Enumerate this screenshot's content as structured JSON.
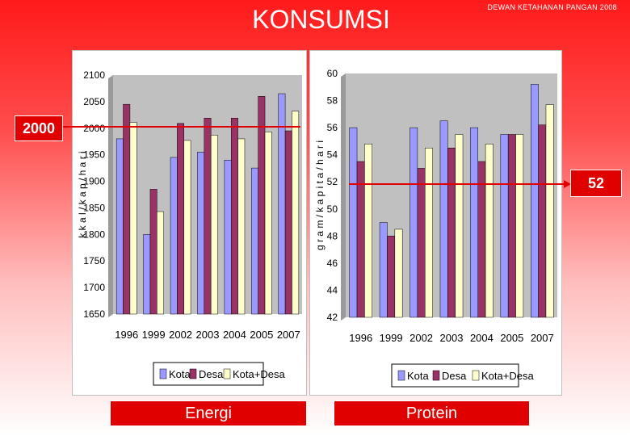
{
  "header": {
    "title": "KONSUMSI",
    "credit": "DEWAN KETAHANAN PANGAN 2008"
  },
  "captions": {
    "energi": "Energi",
    "protein": "Protein"
  },
  "reference": {
    "energi_label": "2000",
    "protein_label": "52",
    "energi_value": 2000,
    "protein_value": 52,
    "color": "#e00000"
  },
  "colors": {
    "kota": "#9999ff",
    "desa": "#993366",
    "kotadesa": "#ffffcc",
    "plot_bg": "#c0c0c0"
  },
  "chart_data": [
    {
      "type": "bar",
      "title": "",
      "ylabel": "k k a l / k a p / h a r i",
      "ylim": [
        1650,
        2100
      ],
      "yticks": [
        1650,
        1700,
        1750,
        1800,
        1850,
        1900,
        1950,
        2000,
        2050,
        2100
      ],
      "grid": false,
      "legend_position": "bottom",
      "categories": [
        "1996",
        "1999",
        "2002",
        "2003",
        "2004",
        "2005",
        "2007"
      ],
      "series": [
        {
          "name": "Kota",
          "values": [
            1980,
            1800,
            1945,
            1955,
            1940,
            1925,
            2065
          ]
        },
        {
          "name": "Desa",
          "values": [
            2045,
            1885,
            2009,
            2019,
            2019,
            2060,
            1995
          ]
        },
        {
          "name": "Kota+Desa",
          "values": [
            2011,
            1843,
            1977,
            1987,
            1980,
            1993,
            2032
          ]
        }
      ]
    },
    {
      "type": "bar",
      "title": "",
      "ylabel": "g r a m / k a p i t a / h a r i",
      "ylim": [
        42,
        60
      ],
      "yticks": [
        42,
        44,
        46,
        48,
        50,
        52,
        54,
        56,
        58,
        60
      ],
      "grid": false,
      "legend_position": "bottom",
      "categories": [
        "1996",
        "1999",
        "2002",
        "2003",
        "2004",
        "2005",
        "2007"
      ],
      "series": [
        {
          "name": "Kota",
          "values": [
            56.0,
            49.0,
            56.0,
            56.5,
            56.0,
            55.5,
            59.2
          ]
        },
        {
          "name": "Desa",
          "values": [
            53.5,
            48.0,
            53.0,
            54.5,
            53.5,
            55.5,
            56.2
          ]
        },
        {
          "name": "Kota+Desa",
          "values": [
            54.8,
            48.5,
            54.5,
            55.5,
            54.8,
            55.5,
            57.7
          ]
        }
      ]
    }
  ]
}
